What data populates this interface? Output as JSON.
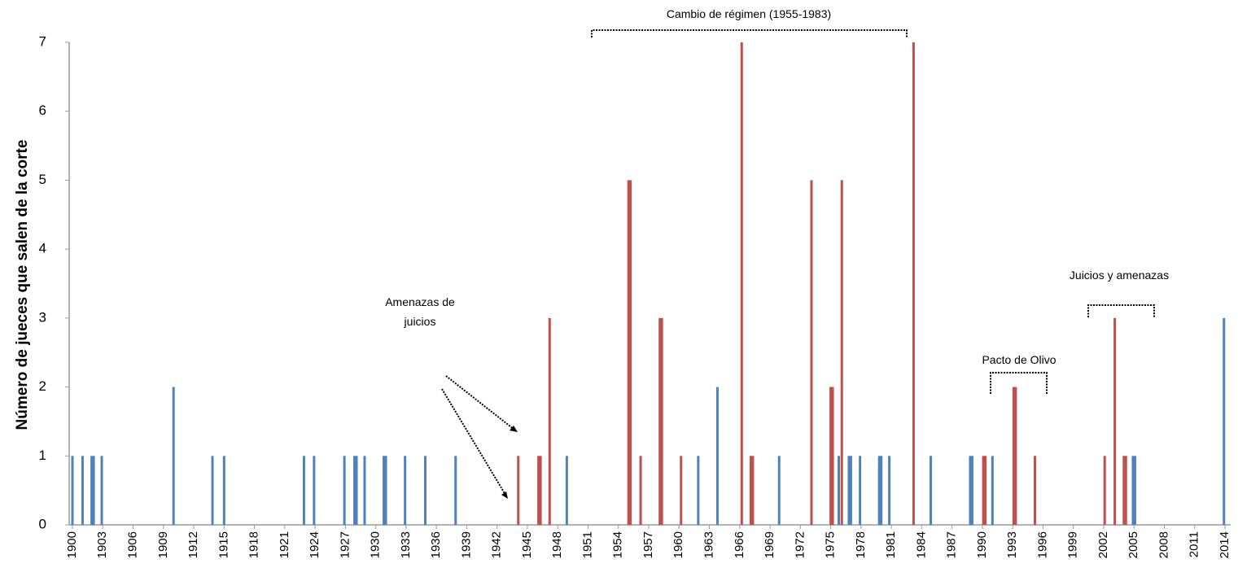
{
  "chart_data": {
    "type": "bar",
    "ylabel": "Número de jueces que salen de la corte",
    "xlim": [
      1900,
      2014
    ],
    "xticks": [
      1900,
      1903,
      1906,
      1909,
      1912,
      1915,
      1918,
      1921,
      1924,
      1927,
      1930,
      1933,
      1936,
      1939,
      1942,
      1945,
      1948,
      1951,
      1954,
      1957,
      1960,
      1963,
      1966,
      1969,
      1972,
      1975,
      1978,
      1981,
      1984,
      1987,
      1990,
      1993,
      1996,
      1999,
      2002,
      2005,
      2008,
      2011,
      2014
    ],
    "ylim": [
      0,
      7
    ],
    "yticks": [
      0,
      1,
      2,
      3,
      4,
      5,
      6,
      7
    ],
    "series": [
      {
        "color": "#4f81bd",
        "x": [
          1900.0,
          1901.0,
          1901.9,
          1902.1,
          1902.9,
          1910.0,
          1913.85,
          1915.0,
          1922.9,
          1923.9,
          1926.9,
          1927.9,
          1928.1,
          1928.9,
          1930.8,
          1931.0,
          1932.9,
          1934.9,
          1937.9,
          1948.9,
          1961.9,
          1963.8,
          1969.9,
          1975.8,
          1976.8,
          1977.0,
          1977.9,
          1979.8,
          1980.0,
          1980.8,
          1984.9,
          1988.8,
          1989.0,
          1991.0,
          2004.9,
          2005.1,
          2013.9
        ],
        "values": [
          1,
          1,
          1,
          1,
          1,
          2,
          1,
          1,
          1,
          1,
          1,
          1,
          1,
          1,
          1,
          1,
          1,
          1,
          1,
          1,
          1,
          2,
          1,
          1,
          1,
          1,
          1,
          1,
          1,
          1,
          1,
          1,
          1,
          1,
          1,
          1,
          3
        ]
      },
      {
        "color": "#c0504d",
        "x": [
          1944.1,
          1946.1,
          1946.3,
          1947.2,
          1955.0,
          1955.2,
          1956.2,
          1958.1,
          1958.3,
          1960.2,
          1966.2,
          1967.1,
          1967.3,
          1973.1,
          1975.0,
          1975.2,
          1976.1,
          1983.2,
          1990.1,
          1990.3,
          1993.1,
          1993.3,
          1995.2,
          2002.1,
          2003.1,
          2004.0,
          2004.2
        ],
        "values": [
          1,
          1,
          1,
          3,
          5,
          5,
          1,
          3,
          3,
          1,
          7,
          1,
          1,
          5,
          2,
          2,
          5,
          7,
          1,
          1,
          2,
          2,
          1,
          1,
          3,
          1,
          1
        ]
      }
    ],
    "annotations": [
      "Cambio de régimen (1955-1983)",
      [
        "Amenazas de",
        "juicios"
      ],
      "Pacto de Olivo",
      "Juicios y amenazas"
    ]
  }
}
